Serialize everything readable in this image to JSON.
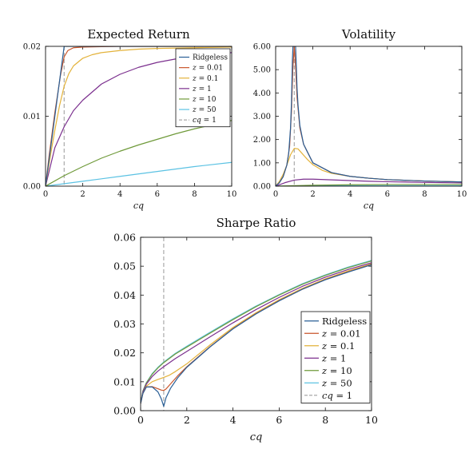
{
  "colors": {
    "Ridgeless": "#2a5f96",
    "z = 0.01": "#c9552b",
    "z = 0.1": "#e3b23a",
    "z = 1": "#7b2f8e",
    "z = 10": "#6f9a3a",
    "z = 50": "#5bc2e3",
    "cq = 1": "#aaaaaa"
  },
  "chart_data": [
    {
      "type": "line",
      "title": "Expected Return",
      "xlabel": "cq",
      "ylabel": "",
      "xlim": [
        0,
        10
      ],
      "ylim": [
        0,
        0.02
      ],
      "xticks": [
        "0",
        "2",
        "4",
        "6",
        "8",
        "10"
      ],
      "yticks": [
        "0.00",
        "0.01",
        "0.02"
      ],
      "legend": "top-right",
      "grid": false,
      "vline_x": 1,
      "series": [
        {
          "name": "Ridgeless",
          "x": [
            0,
            0.2,
            0.4,
            0.6,
            0.8,
            0.9,
            1.0,
            1.05,
            2,
            4,
            6,
            8,
            10
          ],
          "y": [
            0,
            0.004,
            0.008,
            0.012,
            0.016,
            0.018,
            0.02,
            0.02,
            0.02,
            0.02,
            0.02,
            0.02,
            0.02
          ]
        },
        {
          "name": "z = 0.01",
          "x": [
            0,
            0.2,
            0.5,
            0.8,
            1.0,
            1.2,
            1.5,
            2,
            3,
            4,
            6,
            8,
            10
          ],
          "y": [
            0,
            0.0045,
            0.0105,
            0.0158,
            0.0185,
            0.0194,
            0.0198,
            0.0199,
            0.01995,
            0.02,
            0.02,
            0.02,
            0.02
          ]
        },
        {
          "name": "z = 0.1",
          "x": [
            0,
            0.25,
            0.5,
            0.75,
            1.0,
            1.25,
            1.5,
            2,
            2.5,
            3,
            4,
            5,
            6,
            8,
            10
          ],
          "y": [
            0,
            0.0042,
            0.008,
            0.0115,
            0.0143,
            0.0161,
            0.0172,
            0.0183,
            0.0188,
            0.0191,
            0.0194,
            0.0196,
            0.0197,
            0.0198,
            0.0199
          ]
        },
        {
          "name": "z = 1",
          "x": [
            0,
            0.5,
            1,
            1.5,
            2,
            3,
            4,
            5,
            6,
            7,
            8,
            9,
            10
          ],
          "y": [
            0,
            0.0055,
            0.0085,
            0.0108,
            0.0123,
            0.0146,
            0.016,
            0.017,
            0.0177,
            0.0182,
            0.0186,
            0.0189,
            0.0191
          ]
        },
        {
          "name": "z = 10",
          "x": [
            0,
            1,
            2,
            3,
            4,
            5,
            6,
            7,
            8,
            9,
            10
          ],
          "y": [
            0,
            0.0015,
            0.0028,
            0.004,
            0.005,
            0.0059,
            0.0067,
            0.0075,
            0.0082,
            0.0088,
            0.0094
          ]
        },
        {
          "name": "z = 50",
          "x": [
            0,
            2,
            4,
            6,
            8,
            10
          ],
          "y": [
            0,
            0.0007,
            0.0014,
            0.0021,
            0.0028,
            0.0034
          ]
        }
      ],
      "legend_entries": [
        "Ridgeless",
        "z = 0.01",
        "z = 0.1",
        "z = 1",
        "z = 10",
        "z = 50",
        "cq = 1"
      ]
    },
    {
      "type": "line",
      "title": "Volatility",
      "xlabel": "cq",
      "ylabel": "",
      "xlim": [
        0,
        10
      ],
      "ylim": [
        0,
        6
      ],
      "xticks": [
        "0",
        "2",
        "4",
        "6",
        "8",
        "10"
      ],
      "yticks": [
        "0.00",
        "1.00",
        "2.00",
        "3.00",
        "4.00",
        "5.00",
        "6.00"
      ],
      "grid": false,
      "vline_x": 1,
      "series": [
        {
          "name": "Ridgeless",
          "x": [
            0,
            0.2,
            0.4,
            0.6,
            0.7,
            0.8,
            0.85,
            0.9,
            0.93,
            1.07,
            1.1,
            1.15,
            1.2,
            1.3,
            1.5,
            2,
            3,
            4,
            5,
            6,
            8,
            10
          ],
          "y": [
            0,
            0.15,
            0.4,
            0.9,
            1.4,
            2.5,
            3.6,
            5.4,
            6.0,
            6.0,
            5.4,
            4.2,
            3.5,
            2.6,
            1.8,
            1.0,
            0.58,
            0.42,
            0.34,
            0.28,
            0.22,
            0.18
          ]
        },
        {
          "name": "z = 0.01",
          "x": [
            0,
            0.2,
            0.4,
            0.6,
            0.75,
            0.85,
            0.92,
            1.0,
            1.08,
            1.15,
            1.3,
            1.5,
            2,
            3,
            4,
            5,
            6,
            8,
            10
          ],
          "y": [
            0,
            0.15,
            0.4,
            0.9,
            1.7,
            3.2,
            5.0,
            6.0,
            5.0,
            3.8,
            2.5,
            1.8,
            1.0,
            0.58,
            0.42,
            0.34,
            0.28,
            0.22,
            0.18
          ]
        },
        {
          "name": "z = 0.1",
          "x": [
            0,
            0.2,
            0.4,
            0.6,
            0.8,
            1.0,
            1.2,
            1.4,
            1.7,
            2,
            2.5,
            3,
            4,
            5,
            6,
            8,
            10
          ],
          "y": [
            0,
            0.2,
            0.5,
            0.9,
            1.35,
            1.62,
            1.6,
            1.42,
            1.15,
            0.92,
            0.68,
            0.55,
            0.42,
            0.34,
            0.28,
            0.22,
            0.18
          ]
        },
        {
          "name": "z = 1",
          "x": [
            0,
            0.5,
            1,
            1.5,
            2,
            3,
            4,
            5,
            6,
            8,
            10
          ],
          "y": [
            0,
            0.15,
            0.26,
            0.3,
            0.3,
            0.27,
            0.24,
            0.21,
            0.19,
            0.16,
            0.14
          ]
        },
        {
          "name": "z = 10",
          "x": [
            0,
            2,
            4,
            6,
            8,
            10
          ],
          "y": [
            0,
            0.04,
            0.06,
            0.07,
            0.07,
            0.07
          ]
        },
        {
          "name": "z = 50",
          "x": [
            0,
            2,
            4,
            6,
            8,
            10
          ],
          "y": [
            0,
            0.01,
            0.02,
            0.02,
            0.02,
            0.02
          ]
        }
      ]
    },
    {
      "type": "line",
      "title": "Sharpe Ratio",
      "xlabel": "cq",
      "ylabel": "",
      "xlim": [
        0,
        10
      ],
      "ylim": [
        0,
        0.06
      ],
      "xticks": [
        "0",
        "2",
        "4",
        "6",
        "8",
        "10"
      ],
      "yticks": [
        "0.00",
        "0.01",
        "0.02",
        "0.03",
        "0.04",
        "0.05",
        "0.06"
      ],
      "legend": "bottom-right",
      "grid": false,
      "vline_x": 1,
      "series": [
        {
          "name": "Ridgeless",
          "x": [
            0,
            0.1,
            0.25,
            0.5,
            0.75,
            0.9,
            1.0,
            1.1,
            1.3,
            1.6,
            2,
            3,
            4,
            5,
            6,
            7,
            8,
            9,
            10
          ],
          "y": [
            0.0025,
            0.006,
            0.0082,
            0.0082,
            0.0065,
            0.004,
            0.0015,
            0.0045,
            0.0078,
            0.0113,
            0.015,
            0.022,
            0.0283,
            0.0335,
            0.038,
            0.042,
            0.0453,
            0.048,
            0.0505
          ]
        },
        {
          "name": "z = 0.01",
          "x": [
            0,
            0.1,
            0.25,
            0.5,
            0.75,
            0.9,
            1.0,
            1.1,
            1.3,
            1.6,
            2,
            3,
            4,
            5,
            6,
            7,
            8,
            9,
            10
          ],
          "y": [
            0.0025,
            0.006,
            0.0082,
            0.0083,
            0.0076,
            0.0071,
            0.007,
            0.0075,
            0.0093,
            0.012,
            0.0152,
            0.0221,
            0.0284,
            0.0336,
            0.0381,
            0.042,
            0.0454,
            0.0481,
            0.0506
          ]
        },
        {
          "name": "z = 0.1",
          "x": [
            0,
            0.1,
            0.25,
            0.5,
            0.75,
            1.0,
            1.25,
            1.5,
            2,
            3,
            4,
            5,
            6,
            7,
            8,
            9,
            10
          ],
          "y": [
            0.0025,
            0.006,
            0.0085,
            0.01,
            0.0108,
            0.0115,
            0.0123,
            0.0135,
            0.0162,
            0.0227,
            0.0288,
            0.0339,
            0.0384,
            0.0423,
            0.0456,
            0.0484,
            0.0508
          ]
        },
        {
          "name": "z = 1",
          "x": [
            0,
            0.1,
            0.25,
            0.5,
            0.75,
            1.0,
            1.5,
            2,
            3,
            4,
            5,
            6,
            7,
            8,
            9,
            10
          ],
          "y": [
            0.0025,
            0.0065,
            0.0092,
            0.0118,
            0.0137,
            0.0152,
            0.018,
            0.0205,
            0.0255,
            0.0304,
            0.035,
            0.0392,
            0.043,
            0.0462,
            0.0489,
            0.0512
          ]
        },
        {
          "name": "z = 10",
          "x": [
            0,
            0.1,
            0.25,
            0.5,
            0.75,
            1.0,
            1.5,
            2,
            3,
            4,
            5,
            6,
            7,
            8,
            9,
            10
          ],
          "y": [
            0.0025,
            0.0068,
            0.0096,
            0.0126,
            0.0148,
            0.0166,
            0.0196,
            0.022,
            0.0268,
            0.0315,
            0.036,
            0.04,
            0.0437,
            0.0468,
            0.0495,
            0.0518
          ]
        },
        {
          "name": "z = 50",
          "x": [
            0,
            0.1,
            0.25,
            0.5,
            0.75,
            1.0,
            1.5,
            2,
            3,
            4,
            5,
            6,
            7,
            8,
            9,
            10
          ],
          "y": [
            0.0025,
            0.0069,
            0.0097,
            0.0128,
            0.015,
            0.0168,
            0.0198,
            0.0223,
            0.0271,
            0.0318,
            0.0362,
            0.0402,
            0.0439,
            0.047,
            0.0497,
            0.052
          ]
        }
      ],
      "legend_entries": [
        "Ridgeless",
        "z = 0.01",
        "z = 0.1",
        "z = 1",
        "z = 10",
        "z = 50",
        "cq = 1"
      ]
    }
  ]
}
